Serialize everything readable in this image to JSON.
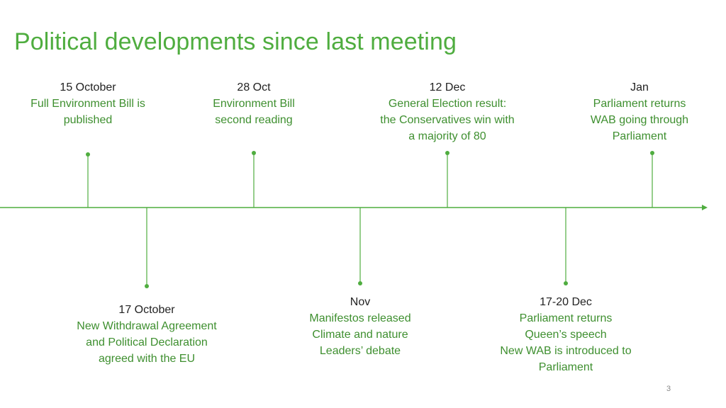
{
  "slide": {
    "title": "Political developments since last meeting",
    "page_number": "3"
  },
  "colors": {
    "accent": "#4fad3f",
    "description_text": "#3e8f2f",
    "date_text": "#222222"
  },
  "events_above": [
    {
      "date": "15 October",
      "lines": [
        "Full Environment Bill is",
        "published"
      ]
    },
    {
      "date": "28 Oct",
      "lines": [
        "Environment Bill",
        "second reading"
      ]
    },
    {
      "date": "12 Dec",
      "lines": [
        "General Election result:",
        "the Conservatives win with",
        "a majority of 80"
      ]
    },
    {
      "date": "Jan",
      "lines": [
        "Parliament returns",
        "WAB going through",
        "Parliament"
      ]
    }
  ],
  "events_below": [
    {
      "date": "17 October",
      "lines": [
        "New Withdrawal Agreement",
        "and Political Declaration",
        "agreed with the EU"
      ]
    },
    {
      "date": "Nov",
      "lines": [
        "Manifestos released",
        "Climate and nature",
        "Leaders’ debate"
      ]
    },
    {
      "date": "17-20 Dec",
      "lines": [
        "Parliament returns",
        "Queen’s speech",
        "New WAB is introduced to",
        "Parliament"
      ]
    }
  ]
}
